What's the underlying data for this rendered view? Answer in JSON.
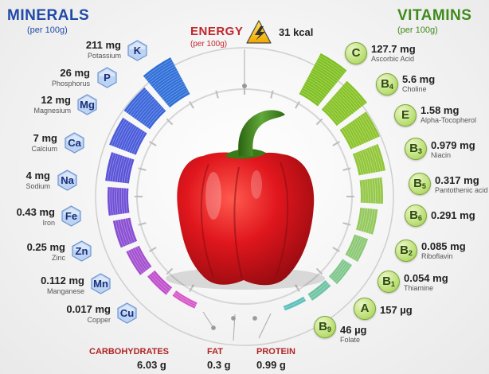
{
  "minerals": {
    "title": "MINERALS",
    "subtitle": "(per 100g)",
    "items": [
      {
        "symbol": "K",
        "value": "211 mg",
        "name": "Potassium"
      },
      {
        "symbol": "P",
        "value": "26 mg",
        "name": "Phosphorus"
      },
      {
        "symbol": "Mg",
        "value": "12 mg",
        "name": "Magnesium"
      },
      {
        "symbol": "Ca",
        "value": "7 mg",
        "name": "Calcium"
      },
      {
        "symbol": "Na",
        "value": "4 mg",
        "name": "Sodium"
      },
      {
        "symbol": "Fe",
        "value": "0.43 mg",
        "name": "Iron"
      },
      {
        "symbol": "Zn",
        "value": "0.25 mg",
        "name": "Zinc"
      },
      {
        "symbol": "Mn",
        "value": "0.112 mg",
        "name": "Manganese"
      },
      {
        "symbol": "Cu",
        "value": "0.017 mg",
        "name": "Copper"
      }
    ]
  },
  "vitamins": {
    "title": "VITAMINS",
    "subtitle": "(per 100g)",
    "items": [
      {
        "letter": "C",
        "sub": "",
        "value": "127.7 mg",
        "name": "Ascorbic Acid"
      },
      {
        "letter": "B",
        "sub": "4",
        "value": "5.6 mg",
        "name": "Choline"
      },
      {
        "letter": "E",
        "sub": "",
        "value": "1.58 mg",
        "name": "Alpha-Tocopherol"
      },
      {
        "letter": "B",
        "sub": "3",
        "value": "0.979 mg",
        "name": "Niacin"
      },
      {
        "letter": "B",
        "sub": "5",
        "value": "0.317 mg",
        "name": "Pantothenic acid"
      },
      {
        "letter": "B",
        "sub": "6",
        "value": "0.291 mg",
        "name": ""
      },
      {
        "letter": "B",
        "sub": "2",
        "value": "0.085 mg",
        "name": "Riboflavin"
      },
      {
        "letter": "B",
        "sub": "1",
        "value": "0.054 mg",
        "name": "Thiamine"
      },
      {
        "letter": "A",
        "sub": "",
        "value": "157 µg",
        "name": ""
      },
      {
        "letter": "B",
        "sub": "9",
        "value": "46 µg",
        "name": "Folate"
      }
    ]
  },
  "energy": {
    "title": "ENERGY",
    "subtitle": "(per 100g)",
    "value": "31 kcal",
    "icon": "lightning-icon"
  },
  "macros": [
    {
      "name": "CARBOHYDRATES",
      "value": "6.03 g"
    },
    {
      "name": "FAT",
      "value": "0.3 g"
    },
    {
      "name": "PROTEIN",
      "value": "0.99 g"
    }
  ],
  "colors": {
    "minerals_title": "#1f4aa8",
    "vitamins_title": "#3f8a1c",
    "energy_title": "#c1272d",
    "pepper_red": "#d8141c",
    "stem_green": "#3f8a1c"
  }
}
